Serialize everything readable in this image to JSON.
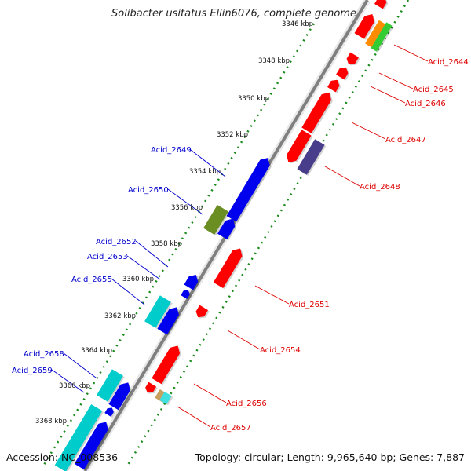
{
  "title": "Solibacter usitatus Ellin6076, complete genome",
  "footer": {
    "accession": "Accession: NC_008536",
    "summary": "Topology: circular; Length: 9,965,640 bp; Genes: 7,887"
  },
  "colors": {
    "backbone": "#888888",
    "tick_inner": "#1a8a1a",
    "tick_outer": "#1a8a1a",
    "label_forward": "#dd0000",
    "label_reverse": "#0000cc"
  },
  "kbp_ticks": [
    "3346 kbp",
    "3348 kbp",
    "3350 kbp",
    "3352 kbp",
    "3354 kbp",
    "3356 kbp",
    "3358 kbp",
    "3360 kbp",
    "3362 kbp",
    "3364 kbp",
    "3366 kbp",
    "3368 kbp"
  ],
  "genes_forward": [
    "Acid_2644",
    "Acid_2645",
    "Acid_2646",
    "Acid_2647",
    "Acid_2648",
    "Acid_2651",
    "Acid_2654",
    "Acid_2656",
    "Acid_2657"
  ],
  "genes_reverse": [
    "Acid_2649",
    "Acid_2650",
    "Acid_2652",
    "Acid_2653",
    "Acid_2655",
    "Acid_2658",
    "Acid_2659"
  ],
  "feature_colors": {
    "red": "#ff0000",
    "blue": "#0000ee",
    "cyan": "#00cccc",
    "olive": "#6b8e23",
    "slate": "#483d8b",
    "orange": "#ff8c00",
    "green": "#33cc33",
    "tan": "#c8a060",
    "lightcyan": "#40e0e0"
  }
}
